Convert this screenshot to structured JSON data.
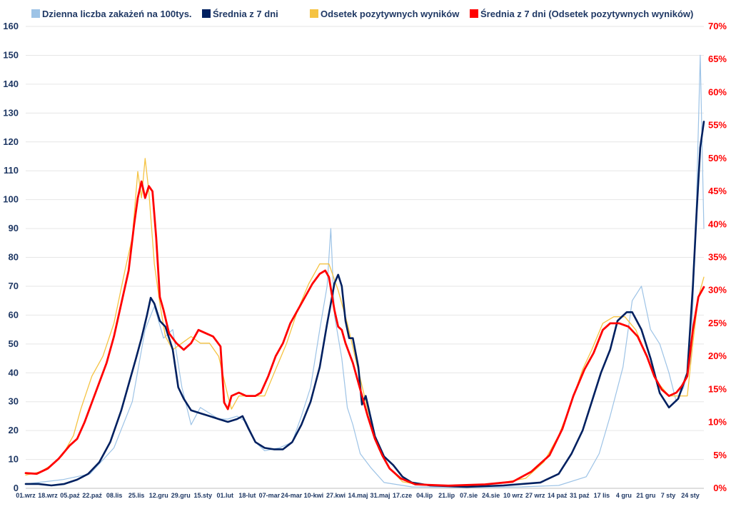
{
  "chart_data": {
    "type": "line",
    "title": "",
    "legend_position": "top",
    "grid": {
      "horizontal": true,
      "vertical": false
    },
    "x_tick_labels": [
      "01.wrz",
      "18.wrz",
      "05.paź",
      "22.paź",
      "08.lis",
      "25.lis",
      "12.gru",
      "29.gru",
      "15.sty",
      "01.lut",
      "18-lut",
      "07-mar",
      "24-mar",
      "10-kwi",
      "27.kwi",
      "14.maj",
      "31.maj",
      "17.cze",
      "04.lip",
      "21.lip",
      "07.sie",
      "24.sie",
      "10 wrz",
      "27 wrz",
      "14 paź",
      "31 paź",
      "17 lis",
      "4 gru",
      "21 gru",
      "7 sty",
      "24 sty"
    ],
    "y_left": {
      "min": 0,
      "max": 160,
      "step": 10,
      "ticks": [
        "0",
        "10",
        "20",
        "30",
        "40",
        "50",
        "60",
        "70",
        "80",
        "90",
        "100",
        "110",
        "120",
        "130",
        "140",
        "150",
        "160"
      ]
    },
    "y_right": {
      "min": 0,
      "max": 70,
      "step": 5,
      "ticks": [
        "0%",
        "5%",
        "10%",
        "15%",
        "20%",
        "25%",
        "30%",
        "35%",
        "40%",
        "45%",
        "50%",
        "55%",
        "60%",
        "65%",
        "70%"
      ]
    },
    "series": [
      {
        "name": "Dzienna liczba zakażeń na 100tys.",
        "axis": "left",
        "color": "#9dc3e6",
        "points": [
          [
            0,
            1.5
          ],
          [
            20,
            3
          ],
          [
            35,
            5
          ],
          [
            48,
            14
          ],
          [
            58,
            30
          ],
          [
            65,
            55
          ],
          [
            70,
            63
          ],
          [
            75,
            52
          ],
          [
            80,
            55
          ],
          [
            85,
            35
          ],
          [
            90,
            22
          ],
          [
            95,
            28
          ],
          [
            100,
            26
          ],
          [
            105,
            24
          ],
          [
            110,
            24
          ],
          [
            115,
            25
          ],
          [
            120,
            23
          ],
          [
            125,
            16
          ],
          [
            130,
            13
          ],
          [
            138,
            14
          ],
          [
            145,
            16
          ],
          [
            150,
            25
          ],
          [
            155,
            35
          ],
          [
            160,
            55
          ],
          [
            164,
            70
          ],
          [
            166,
            90
          ],
          [
            168,
            60
          ],
          [
            172,
            45
          ],
          [
            175,
            28
          ],
          [
            178,
            22
          ],
          [
            182,
            12
          ],
          [
            188,
            7
          ],
          [
            195,
            2
          ],
          [
            210,
            0.5
          ],
          [
            240,
            0.3
          ],
          [
            270,
            0.5
          ],
          [
            290,
            1
          ],
          [
            305,
            4
          ],
          [
            312,
            12
          ],
          [
            318,
            25
          ],
          [
            325,
            42
          ],
          [
            330,
            65
          ],
          [
            335,
            70
          ],
          [
            340,
            55
          ],
          [
            345,
            50
          ],
          [
            350,
            40
          ],
          [
            354,
            30
          ],
          [
            358,
            35
          ],
          [
            362,
            45
          ],
          [
            365,
            100
          ],
          [
            367,
            150
          ],
          [
            369,
            90
          ]
        ]
      },
      {
        "name": "Średnia z 7 dni",
        "axis": "left",
        "color": "#002060",
        "points": [
          [
            0,
            1.5
          ],
          [
            7,
            1.5
          ],
          [
            14,
            1
          ],
          [
            21,
            1.5
          ],
          [
            28,
            3
          ],
          [
            34,
            5
          ],
          [
            40,
            9
          ],
          [
            46,
            16
          ],
          [
            52,
            27
          ],
          [
            56,
            36
          ],
          [
            60,
            45
          ],
          [
            63,
            52
          ],
          [
            66,
            60
          ],
          [
            68,
            66
          ],
          [
            70,
            64
          ],
          [
            73,
            58
          ],
          [
            76,
            56
          ],
          [
            80,
            48
          ],
          [
            83,
            35
          ],
          [
            86,
            31
          ],
          [
            90,
            27
          ],
          [
            95,
            26
          ],
          [
            100,
            25
          ],
          [
            105,
            24
          ],
          [
            110,
            23
          ],
          [
            115,
            24
          ],
          [
            118,
            25
          ],
          [
            121,
            21
          ],
          [
            125,
            16
          ],
          [
            130,
            14
          ],
          [
            135,
            13.5
          ],
          [
            140,
            13.5
          ],
          [
            145,
            16
          ],
          [
            150,
            22
          ],
          [
            155,
            30
          ],
          [
            160,
            42
          ],
          [
            164,
            57
          ],
          [
            166,
            64
          ],
          [
            168,
            71
          ],
          [
            170,
            74
          ],
          [
            172,
            70
          ],
          [
            174,
            58
          ],
          [
            176,
            52
          ],
          [
            178,
            52
          ],
          [
            181,
            42
          ],
          [
            183,
            29
          ],
          [
            185,
            32
          ],
          [
            190,
            18
          ],
          [
            195,
            11
          ],
          [
            200,
            8
          ],
          [
            205,
            4
          ],
          [
            210,
            2
          ],
          [
            220,
            1
          ],
          [
            240,
            0.5
          ],
          [
            260,
            1
          ],
          [
            280,
            2
          ],
          [
            290,
            5
          ],
          [
            297,
            12
          ],
          [
            303,
            20
          ],
          [
            308,
            30
          ],
          [
            313,
            40
          ],
          [
            318,
            48
          ],
          [
            322,
            58
          ],
          [
            327,
            61
          ],
          [
            330,
            61
          ],
          [
            335,
            55
          ],
          [
            340,
            45
          ],
          [
            345,
            33
          ],
          [
            350,
            28
          ],
          [
            355,
            31
          ],
          [
            360,
            40
          ],
          [
            363,
            70
          ],
          [
            365,
            95
          ],
          [
            367,
            118
          ],
          [
            369,
            127
          ]
        ]
      },
      {
        "name": "Odsetek pozytywnych wyników",
        "axis": "right",
        "color": "#f5c342",
        "points": [
          [
            0,
            2
          ],
          [
            8,
            2.5
          ],
          [
            14,
            3.5
          ],
          [
            20,
            5
          ],
          [
            26,
            8
          ],
          [
            30,
            12
          ],
          [
            36,
            17
          ],
          [
            42,
            20
          ],
          [
            48,
            25
          ],
          [
            54,
            33
          ],
          [
            58,
            38
          ],
          [
            61,
            48
          ],
          [
            63,
            44
          ],
          [
            65,
            50
          ],
          [
            67,
            45
          ],
          [
            70,
            34
          ],
          [
            73,
            28
          ],
          [
            76,
            23
          ],
          [
            80,
            21
          ],
          [
            85,
            22
          ],
          [
            90,
            23
          ],
          [
            95,
            22
          ],
          [
            100,
            22
          ],
          [
            105,
            20
          ],
          [
            110,
            14
          ],
          [
            112,
            12
          ],
          [
            116,
            14
          ],
          [
            120,
            14
          ],
          [
            126,
            14
          ],
          [
            130,
            14
          ],
          [
            136,
            18
          ],
          [
            142,
            22
          ],
          [
            148,
            27
          ],
          [
            154,
            31
          ],
          [
            160,
            34
          ],
          [
            165,
            34
          ],
          [
            170,
            30
          ],
          [
            175,
            25
          ],
          [
            180,
            19
          ],
          [
            186,
            12
          ],
          [
            192,
            6
          ],
          [
            198,
            3
          ],
          [
            205,
            1
          ],
          [
            215,
            0.5
          ],
          [
            240,
            0.3
          ],
          [
            262,
            1
          ],
          [
            272,
            1.5
          ],
          [
            282,
            4
          ],
          [
            290,
            8
          ],
          [
            297,
            13
          ],
          [
            303,
            18
          ],
          [
            308,
            21
          ],
          [
            314,
            25
          ],
          [
            320,
            26
          ],
          [
            326,
            26
          ],
          [
            332,
            24
          ],
          [
            338,
            20
          ],
          [
            344,
            16
          ],
          [
            350,
            14
          ],
          [
            355,
            14
          ],
          [
            360,
            14
          ],
          [
            363,
            22
          ],
          [
            366,
            29
          ],
          [
            369,
            32
          ]
        ]
      },
      {
        "name": "Średnia z 7 dni (Odsetek pozytywnych wyników)",
        "axis": "right",
        "color": "#ff0000",
        "points": [
          [
            0,
            2.3
          ],
          [
            6,
            2.2
          ],
          [
            12,
            3
          ],
          [
            18,
            4.5
          ],
          [
            24,
            6.5
          ],
          [
            28,
            7.5
          ],
          [
            32,
            10
          ],
          [
            36,
            13
          ],
          [
            40,
            16
          ],
          [
            44,
            19
          ],
          [
            48,
            23
          ],
          [
            52,
            28
          ],
          [
            56,
            33
          ],
          [
            59,
            40
          ],
          [
            61,
            44
          ],
          [
            63,
            46.5
          ],
          [
            65,
            44
          ],
          [
            67,
            45.8
          ],
          [
            69,
            45
          ],
          [
            71,
            38
          ],
          [
            73,
            29
          ],
          [
            75,
            27
          ],
          [
            78,
            23.5
          ],
          [
            82,
            22
          ],
          [
            86,
            21
          ],
          [
            90,
            22
          ],
          [
            94,
            24
          ],
          [
            98,
            23.5
          ],
          [
            102,
            23
          ],
          [
            106,
            21.5
          ],
          [
            108,
            13
          ],
          [
            110,
            12
          ],
          [
            112,
            14
          ],
          [
            116,
            14.5
          ],
          [
            120,
            14
          ],
          [
            125,
            14
          ],
          [
            128,
            14.5
          ],
          [
            132,
            17
          ],
          [
            136,
            20
          ],
          [
            140,
            22
          ],
          [
            144,
            25
          ],
          [
            148,
            27
          ],
          [
            152,
            29
          ],
          [
            156,
            31
          ],
          [
            160,
            32.5
          ],
          [
            163,
            33
          ],
          [
            165,
            32
          ],
          [
            168,
            27
          ],
          [
            170,
            24.5
          ],
          [
            172,
            24
          ],
          [
            174,
            22
          ],
          [
            178,
            19
          ],
          [
            182,
            15
          ],
          [
            186,
            11
          ],
          [
            190,
            7.5
          ],
          [
            194,
            5
          ],
          [
            198,
            3
          ],
          [
            204,
            1.5
          ],
          [
            212,
            0.6
          ],
          [
            230,
            0.4
          ],
          [
            250,
            0.6
          ],
          [
            265,
            1
          ],
          [
            275,
            2.5
          ],
          [
            285,
            5
          ],
          [
            292,
            9
          ],
          [
            298,
            14
          ],
          [
            304,
            18
          ],
          [
            309,
            20.5
          ],
          [
            314,
            24
          ],
          [
            318,
            25
          ],
          [
            323,
            25
          ],
          [
            328,
            24.5
          ],
          [
            333,
            23
          ],
          [
            338,
            20
          ],
          [
            342,
            17
          ],
          [
            346,
            15
          ],
          [
            350,
            14
          ],
          [
            354,
            14.5
          ],
          [
            357,
            15.5
          ],
          [
            360,
            17
          ],
          [
            363,
            24
          ],
          [
            366,
            29
          ],
          [
            369,
            30.5
          ]
        ]
      }
    ]
  }
}
